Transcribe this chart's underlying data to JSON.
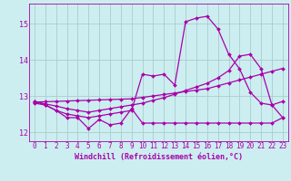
{
  "xlabel": "Windchill (Refroidissement éolien,°C)",
  "background_color": "#cceef0",
  "grid_color": "#aacccc",
  "line_color": "#aa00aa",
  "xlim": [
    -0.5,
    23.5
  ],
  "ylim": [
    11.75,
    15.55
  ],
  "xticks": [
    0,
    1,
    2,
    3,
    4,
    5,
    6,
    7,
    8,
    9,
    10,
    11,
    12,
    13,
    14,
    15,
    16,
    17,
    18,
    19,
    20,
    21,
    22,
    23
  ],
  "yticks": [
    12,
    13,
    14,
    15
  ],
  "curve_zigzag_x": [
    0,
    1,
    2,
    3,
    4,
    5,
    6,
    7,
    8,
    9,
    10,
    11,
    12,
    13,
    14,
    15,
    16,
    17,
    18,
    19,
    20,
    21,
    22,
    23
  ],
  "curve_zigzag_y": [
    12.8,
    12.75,
    12.6,
    12.4,
    12.4,
    12.1,
    12.35,
    12.2,
    12.25,
    12.65,
    12.25,
    12.25,
    12.25,
    12.25,
    12.25,
    12.25,
    12.25,
    12.25,
    12.25,
    12.25,
    12.25,
    12.25,
    12.25,
    12.4
  ],
  "curve_peak_x": [
    0,
    1,
    2,
    3,
    4,
    5,
    6,
    7,
    8,
    9,
    10,
    11,
    12,
    13,
    14,
    15,
    16,
    17,
    18,
    19,
    20,
    21,
    22,
    23
  ],
  "curve_peak_y": [
    12.85,
    12.75,
    12.6,
    12.5,
    12.45,
    12.4,
    12.45,
    12.5,
    12.55,
    12.6,
    13.6,
    13.55,
    13.6,
    13.3,
    15.05,
    15.15,
    15.2,
    14.85,
    14.15,
    13.75,
    13.1,
    12.8,
    12.75,
    12.4
  ],
  "curve_rise_x": [
    0,
    1,
    2,
    3,
    4,
    5,
    6,
    7,
    8,
    9,
    10,
    11,
    12,
    13,
    14,
    15,
    16,
    17,
    18,
    19,
    20,
    21,
    22,
    23
  ],
  "curve_rise_y": [
    12.85,
    12.78,
    12.72,
    12.65,
    12.6,
    12.55,
    12.6,
    12.65,
    12.7,
    12.75,
    12.8,
    12.88,
    12.95,
    13.05,
    13.15,
    13.25,
    13.35,
    13.5,
    13.7,
    14.1,
    14.15,
    13.75,
    12.75,
    12.85
  ],
  "curve_linear_x": [
    0,
    1,
    2,
    3,
    4,
    5,
    6,
    7,
    8,
    9,
    10,
    11,
    12,
    13,
    14,
    15,
    16,
    17,
    18,
    19,
    20,
    21,
    22,
    23
  ],
  "curve_linear_y": [
    12.83,
    12.84,
    12.85,
    12.86,
    12.87,
    12.88,
    12.89,
    12.9,
    12.91,
    12.92,
    12.96,
    13.0,
    13.04,
    13.08,
    13.12,
    13.16,
    13.2,
    13.28,
    13.36,
    13.44,
    13.52,
    13.6,
    13.68,
    13.76
  ],
  "xlabel_fontsize": 6,
  "tick_fontsize": 5.5
}
